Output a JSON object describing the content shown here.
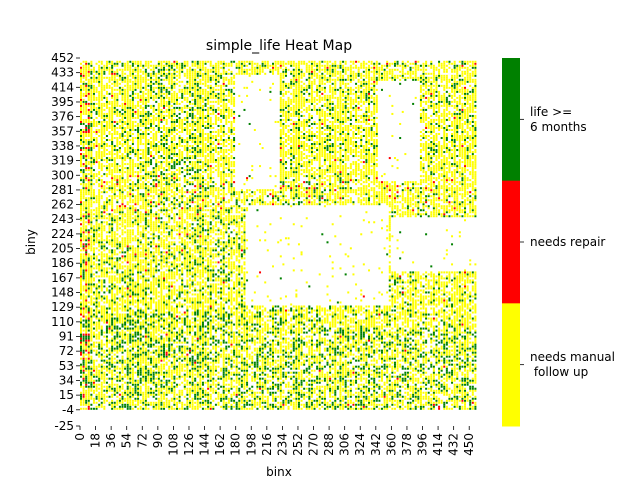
{
  "chart_data": {
    "type": "heatmap",
    "title": "simple_life Heat Map",
    "xlabel": "binx",
    "ylabel": "biny",
    "x_ticks": [
      "0",
      "18",
      "36",
      "54",
      "72",
      "90",
      "108",
      "126",
      "144",
      "162",
      "180",
      "198",
      "216",
      "234",
      "252",
      "270",
      "288",
      "306",
      "324",
      "342",
      "360",
      "378",
      "396",
      "414",
      "432",
      "450"
    ],
    "y_ticks": [
      "452",
      "433",
      "414",
      "395",
      "376",
      "357",
      "338",
      "319",
      "300",
      "281",
      "262",
      "243",
      "224",
      "205",
      "186",
      "167",
      "148",
      "129",
      "110",
      "91",
      "72",
      "53",
      "34",
      "15",
      "-4",
      "-25"
    ],
    "xlim": [
      0,
      459
    ],
    "ylim": [
      -25,
      452
    ],
    "colorbar": {
      "categories": [
        {
          "label": "needs manual\n follow up",
          "color": "#ffff00"
        },
        {
          "label": "needs repair",
          "color": "#ff0000"
        },
        {
          "label": "life >=\n6 months",
          "color": "#008000"
        }
      ]
    },
    "regions": [
      {
        "note": "dense mixed region",
        "x": [
          0,
          459
        ],
        "y": [
          -4,
          448
        ]
      }
    ],
    "empty_regions": [
      {
        "x": [
          190,
          355
        ],
        "y": [
          130,
          260
        ]
      },
      {
        "x": [
          360,
          460
        ],
        "y": [
          175,
          245
        ]
      },
      {
        "x": [
          178,
          230
        ],
        "y": [
          280,
          430
        ]
      },
      {
        "x": [
          345,
          390
        ],
        "y": [
          290,
          420
        ]
      }
    ]
  }
}
